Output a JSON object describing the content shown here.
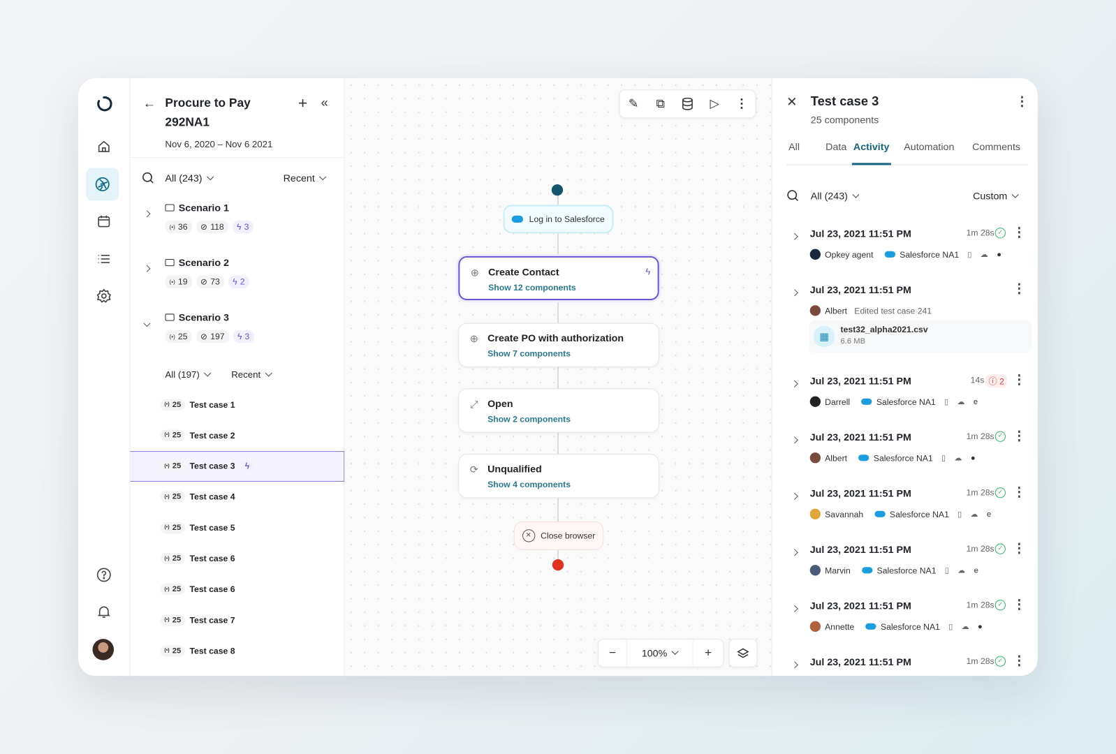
{
  "colors": {
    "accent": "#17657e",
    "purple": "#6a4fd8",
    "success": "#2fb573",
    "error": "#e53b2c",
    "start_dot": "#14566e",
    "end_dot": "#e0321f"
  },
  "rail": {
    "items": [
      {
        "icon": "logo-icon"
      },
      {
        "icon": "home-icon"
      },
      {
        "icon": "aperture-icon",
        "active": true
      },
      {
        "icon": "calendar-icon"
      },
      {
        "icon": "list-icon"
      },
      {
        "icon": "gear-icon"
      },
      {
        "icon": "help-icon"
      },
      {
        "icon": "bell-icon"
      },
      {
        "icon": "avatar"
      }
    ]
  },
  "left": {
    "title_line1": "Procure to Pay",
    "title_line2": "292NA1",
    "date_range": "Nov 6, 2020 – Nov 6 2021",
    "filter": "All (243)",
    "sort": "Recent",
    "scenarios": [
      {
        "name": "Scenario 1",
        "a": "36",
        "b": "118",
        "c": "3",
        "expanded": false
      },
      {
        "name": "Scenario 2",
        "a": "19",
        "b": "73",
        "c": "2",
        "expanded": false
      },
      {
        "name": "Scenario 3",
        "a": "25",
        "b": "197",
        "c": "3",
        "expanded": true
      }
    ],
    "sub_filter": "All (197)",
    "sub_sort": "Recent",
    "test_cases": [
      {
        "count": "25",
        "name": "Test case 1"
      },
      {
        "count": "25",
        "name": "Test case 2"
      },
      {
        "count": "25",
        "name": "Test case 3",
        "selected": true
      },
      {
        "count": "25",
        "name": "Test case 4"
      },
      {
        "count": "25",
        "name": "Test case 5"
      },
      {
        "count": "25",
        "name": "Test case 6"
      },
      {
        "count": "25",
        "name": "Test case 6"
      },
      {
        "count": "25",
        "name": "Test case 7"
      },
      {
        "count": "25",
        "name": "Test case 8"
      }
    ]
  },
  "canvas": {
    "toolbar": [
      "edit-icon",
      "copy-icon",
      "database-icon",
      "play-icon",
      "more-icon"
    ],
    "start": {
      "label": "Log in to Salesforce"
    },
    "nodes": [
      {
        "title": "Create Contact",
        "sub": "Show 12 components",
        "icon": "hexagon-plus-icon",
        "selected": true
      },
      {
        "title": "Create PO with authorization",
        "sub": "Show 7 components",
        "icon": "hexagon-plus-icon"
      },
      {
        "title": "Open",
        "sub": "Show 2 components",
        "icon": "expand-icon"
      },
      {
        "title": "Unqualified",
        "sub": "Show 4 components",
        "icon": "refresh-icon"
      }
    ],
    "end": {
      "label": "Close browser"
    },
    "zoom": "100%"
  },
  "right": {
    "title": "Test case 3",
    "subtitle": "25 components",
    "tabs": [
      "All",
      "Data",
      "Activity",
      "Automation",
      "Comments"
    ],
    "active_tab": "Activity",
    "filter": "All (243)",
    "sort": "Custom",
    "activities": [
      {
        "date": "Jul 23, 2021 11:51 PM",
        "duration": "1m 28s",
        "status": "success",
        "user": "Opkey agent",
        "env": "Salesforce NA1",
        "browser": "apple"
      },
      {
        "date": "Jul 23, 2021 11:51 PM",
        "user": "Albert",
        "action": "Edited test case 241",
        "file": {
          "name": "test32_alpha2021.csv",
          "size": "6.6 MB"
        }
      },
      {
        "date": "Jul 23, 2021 11:51 PM",
        "duration": "14s",
        "status": "error",
        "errors": "2",
        "user": "Darrell",
        "env": "Salesforce NA1",
        "browser": "edge"
      },
      {
        "date": "Jul 23, 2021 11:51 PM",
        "duration": "1m 28s",
        "status": "success",
        "user": "Albert",
        "env": "Salesforce NA1",
        "browser": "apple"
      },
      {
        "date": "Jul 23, 2021 11:51 PM",
        "duration": "1m 28s",
        "status": "success",
        "user": "Savannah",
        "env": "Salesforce NA1",
        "browser": "edge"
      },
      {
        "date": "Jul 23, 2021 11:51 PM",
        "duration": "1m 28s",
        "status": "success",
        "user": "Marvin",
        "env": "Salesforce NA1",
        "browser": "edge"
      },
      {
        "date": "Jul 23, 2021 11:51 PM",
        "duration": "1m 28s",
        "status": "success",
        "user": "Annette",
        "env": "Salesforce NA1",
        "browser": "apple"
      },
      {
        "date": "Jul 23, 2021 11:51 PM",
        "duration": "1m 28s",
        "status": "success"
      }
    ]
  }
}
